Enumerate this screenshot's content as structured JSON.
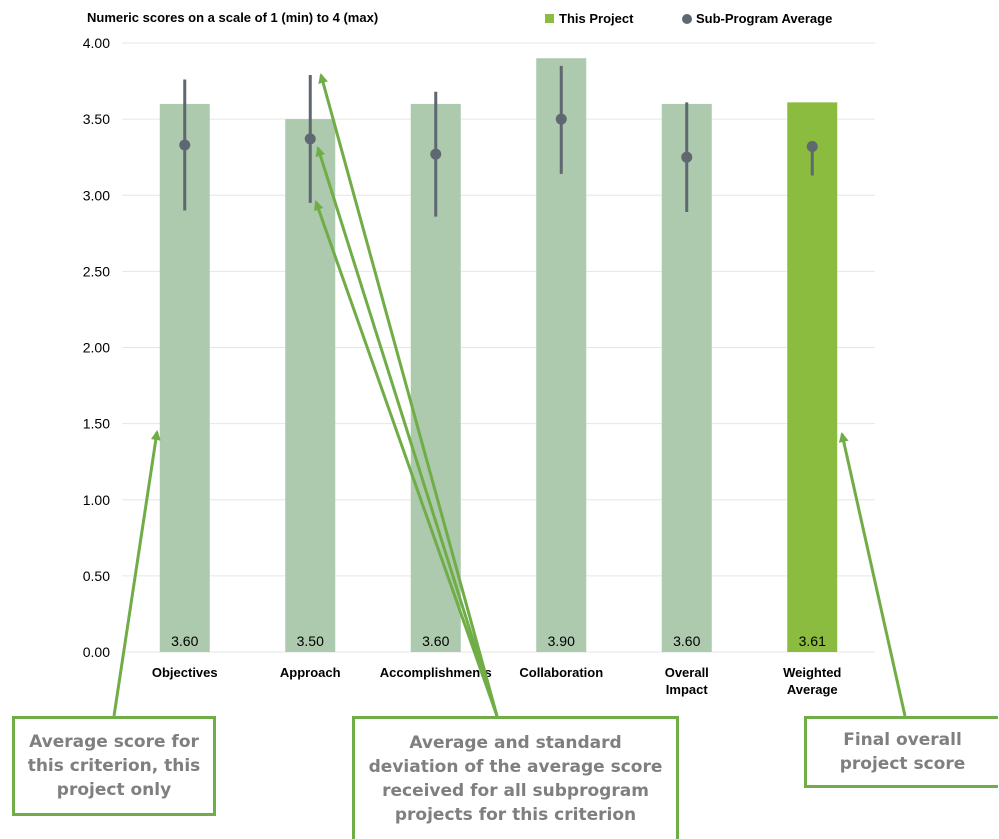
{
  "chart_data": {
    "type": "bar",
    "title": "Numeric scores on a scale of 1 (min) to 4 (max)",
    "categories": [
      [
        "Objectives"
      ],
      [
        "Approach"
      ],
      [
        "Accomplishments"
      ],
      [
        "Collaboration"
      ],
      [
        "Overall",
        "Impact"
      ],
      [
        "Weighted",
        "Average"
      ]
    ],
    "series": [
      {
        "name": "This Project",
        "values": [
          3.6,
          3.5,
          3.6,
          3.9,
          3.6,
          3.61
        ],
        "data_labels": [
          "3.60",
          "3.50",
          "3.60",
          "3.90",
          "3.60",
          "3.61"
        ]
      },
      {
        "name": "Sub-Program Average",
        "values": [
          3.33,
          3.37,
          3.27,
          3.5,
          3.25,
          3.32
        ],
        "error_low": [
          2.9,
          2.95,
          2.86,
          3.14,
          2.89,
          3.13
        ],
        "error_high": [
          3.76,
          3.79,
          3.68,
          3.85,
          3.61,
          3.33
        ]
      }
    ],
    "ylim": [
      0,
      4
    ],
    "yticks": [
      "0.00",
      "0.50",
      "1.00",
      "1.50",
      "2.00",
      "2.50",
      "3.00",
      "3.50",
      "4.00"
    ],
    "grid": true,
    "legend_position": "top-right",
    "colors": {
      "bar": "#adc9ae",
      "highlight_bar": "#8bbb3f",
      "legend_bar": "#8bbb3f",
      "marker": "#5f6770",
      "grid": "#e6e6e6",
      "arrow": "#70ad47"
    }
  },
  "callouts": {
    "left": "Average score for this criterion, this project only",
    "middle": "Average and standard deviation of the average score received for all subprogram projects for this criterion",
    "right": "Final overall project score"
  }
}
